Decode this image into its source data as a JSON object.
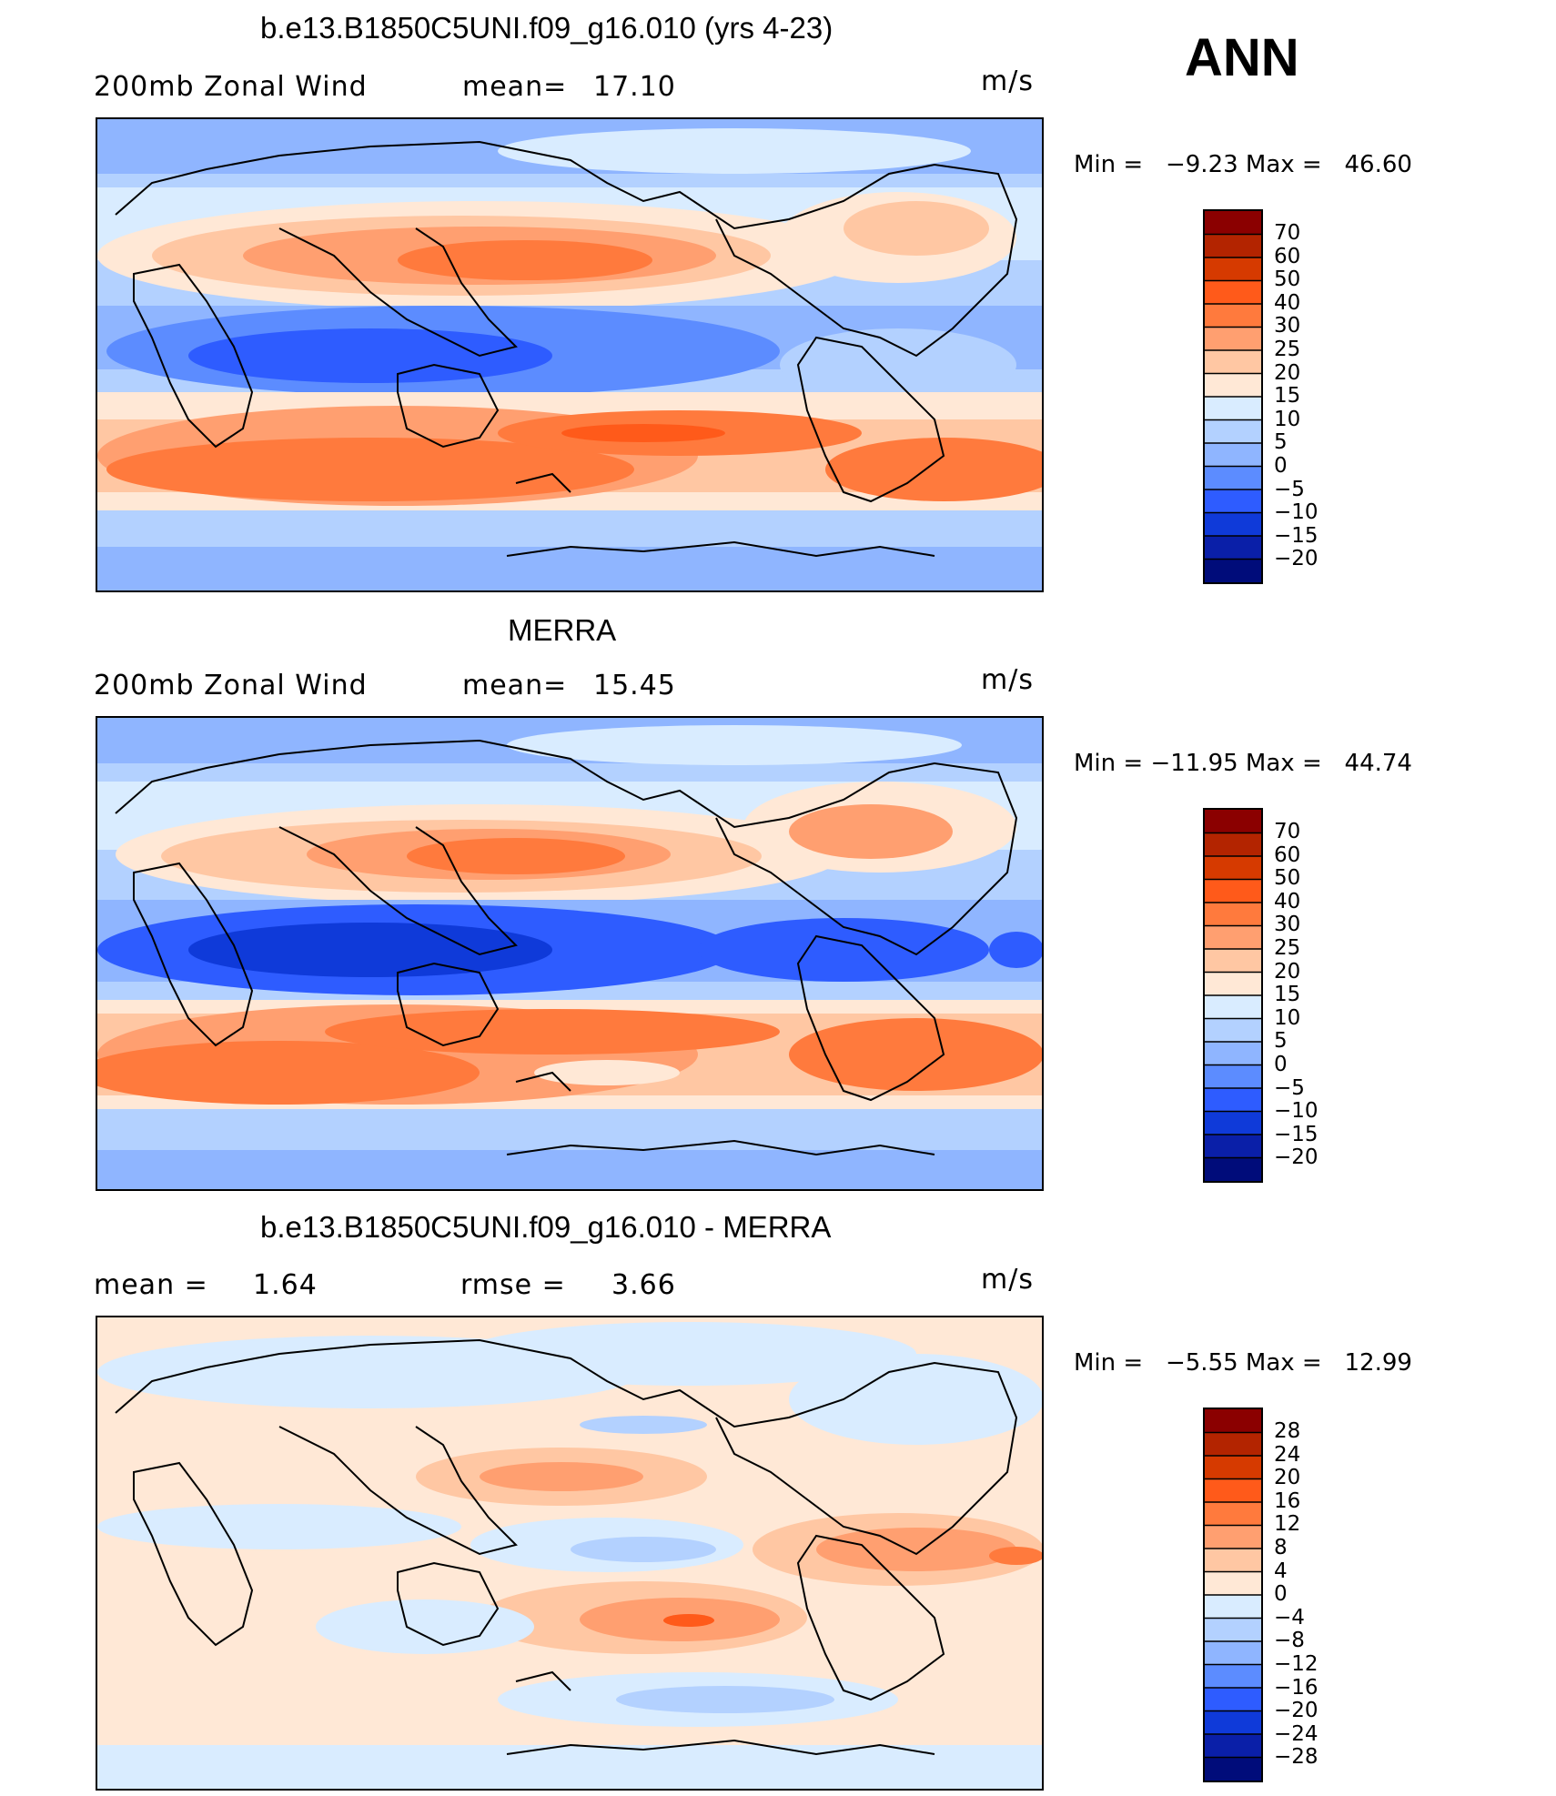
{
  "season": "ANN",
  "panels": [
    {
      "title": "b.e13.B1850C5UNI.f09_g16.010 (yrs 4-23)",
      "left_label": "200mb Zonal Wind",
      "mid_label": "mean=",
      "mid_value": "17.10",
      "units": "m/s",
      "minmax": "Min =   −9.23 Max =   46.60",
      "levels": [
        "70",
        "60",
        "50",
        "40",
        "30",
        "25",
        "20",
        "15",
        "10",
        "5",
        "0",
        "−5",
        "−10",
        "−15",
        "−20"
      ],
      "colors": [
        "#8b0000",
        "#b32400",
        "#d63a00",
        "#ff5a1a",
        "#ff7a3d",
        "#ff9f70",
        "#ffc7a3",
        "#ffe8d6",
        "#d9ecff",
        "#b3d1ff",
        "#8fb5ff",
        "#5c8cff",
        "#2e5cff",
        "#0f3ad9",
        "#0a1fa8",
        "#000c7a"
      ]
    },
    {
      "title": "MERRA",
      "left_label": "200mb Zonal Wind",
      "mid_label": "mean=",
      "mid_value": "15.45",
      "units": "m/s",
      "minmax": "Min = −11.95 Max =   44.74",
      "levels": [
        "70",
        "60",
        "50",
        "40",
        "30",
        "25",
        "20",
        "15",
        "10",
        "5",
        "0",
        "−5",
        "−10",
        "−15",
        "−20"
      ],
      "colors": [
        "#8b0000",
        "#b32400",
        "#d63a00",
        "#ff5a1a",
        "#ff7a3d",
        "#ff9f70",
        "#ffc7a3",
        "#ffe8d6",
        "#d9ecff",
        "#b3d1ff",
        "#8fb5ff",
        "#5c8cff",
        "#2e5cff",
        "#0f3ad9",
        "#0a1fa8",
        "#000c7a"
      ]
    },
    {
      "title": "b.e13.B1850C5UNI.f09_g16.010 - MERRA",
      "left_label": "mean =",
      "left_value": "1.64",
      "mid_label": "rmse =",
      "mid_value": "3.66",
      "units": "m/s",
      "minmax": "Min =   −5.55 Max =   12.99",
      "levels": [
        "28",
        "24",
        "20",
        "16",
        "12",
        "8",
        "4",
        "0",
        "−4",
        "−8",
        "−12",
        "−16",
        "−20",
        "−24",
        "−28"
      ],
      "colors": [
        "#8b0000",
        "#b32400",
        "#d63a00",
        "#ff5a1a",
        "#ff7a3d",
        "#ff9f70",
        "#ffc7a3",
        "#ffe8d6",
        "#d9ecff",
        "#b3d1ff",
        "#8fb5ff",
        "#5c8cff",
        "#2e5cff",
        "#0f3ad9",
        "#0a1fa8",
        "#000c7a"
      ]
    }
  ]
}
